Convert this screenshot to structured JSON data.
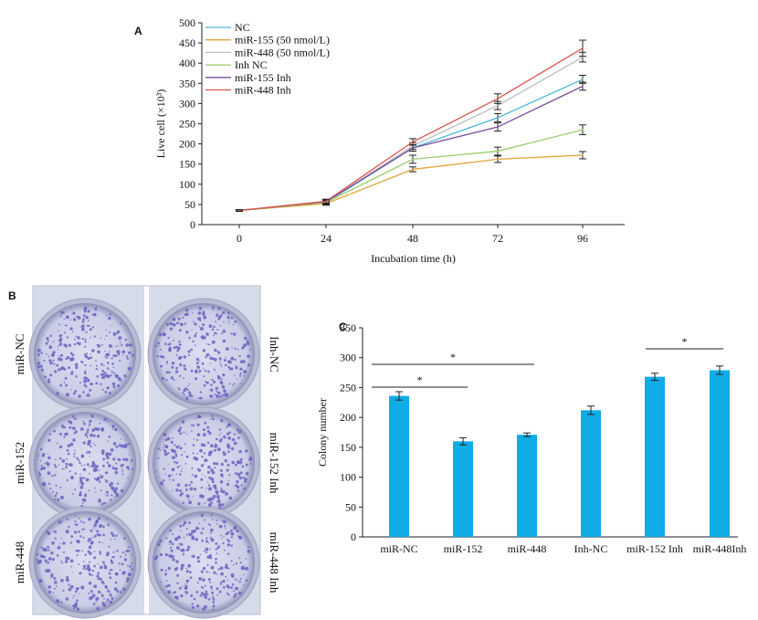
{
  "panels": {
    "a": {
      "letter": "A"
    },
    "b": {
      "letter": "B",
      "left_labels": [
        "miR-NC",
        "miR-152",
        "miR-448"
      ],
      "right_labels": [
        "Inh-NC",
        "miR-152 Inh",
        "miR-448 Inh"
      ],
      "well_color": "#6d63c0"
    },
    "c": {
      "letter": "C"
    }
  },
  "chart_data": [
    {
      "id": "A",
      "type": "line",
      "title": "",
      "xlabel": "Incubation time (h)",
      "ylabel": "Live cell (×10³)",
      "x": [
        0,
        24,
        48,
        72,
        96
      ],
      "xticks": [
        "0",
        "24",
        "48",
        "72",
        "96"
      ],
      "ylim": [
        0,
        500
      ],
      "yticks": [
        0,
        50,
        100,
        150,
        200,
        250,
        300,
        350,
        400,
        450,
        500
      ],
      "legend": "top-left",
      "series": [
        {
          "name": "NC",
          "color": "#4ab8d8",
          "values": [
            35,
            55,
            190,
            265,
            360
          ],
          "errors": [
            2,
            5,
            8,
            10,
            10
          ]
        },
        {
          "name": "miR-155 (50 nmol/L)",
          "color": "#e2a43a",
          "values": [
            35,
            52,
            137,
            162,
            172
          ],
          "errors": [
            2,
            4,
            6,
            8,
            9
          ]
        },
        {
          "name": "miR-448 (50 nmol/L)",
          "color": "#bdbdbd",
          "values": [
            35,
            56,
            195,
            295,
            415
          ],
          "errors": [
            2,
            5,
            8,
            10,
            12
          ]
        },
        {
          "name": "Inh NC",
          "color": "#9ccc6a",
          "values": [
            35,
            55,
            162,
            182,
            235
          ],
          "errors": [
            2,
            4,
            10,
            10,
            12
          ]
        },
        {
          "name": "miR-155 Inh",
          "color": "#7b4f9a",
          "values": [
            35,
            57,
            190,
            242,
            343
          ],
          "errors": [
            2,
            5,
            8,
            10,
            10
          ]
        },
        {
          "name": "miR-448 Inh",
          "color": "#d9534f",
          "values": [
            35,
            58,
            205,
            312,
            437
          ],
          "errors": [
            2,
            5,
            8,
            12,
            20
          ]
        }
      ]
    },
    {
      "id": "C",
      "type": "bar",
      "title": "",
      "xlabel": "",
      "ylabel": "Colony number",
      "categories": [
        "miR-NC",
        "miR-152",
        "miR-448",
        "Inh-NC",
        "miR-152 Inh",
        "miR-448Inh"
      ],
      "values": [
        236,
        160,
        171,
        212,
        268,
        279
      ],
      "errors": [
        7,
        6,
        3,
        7,
        6,
        7
      ],
      "ylim": [
        0,
        350
      ],
      "yticks": [
        0,
        50,
        100,
        150,
        200,
        250,
        300,
        350
      ],
      "bar_color": "#10ace6",
      "significance": [
        {
          "from": 0,
          "to": 1,
          "label": "*"
        },
        {
          "from": 0,
          "to": 2,
          "label": "*"
        },
        {
          "from": 4,
          "to": 5,
          "label": "*"
        }
      ]
    }
  ]
}
